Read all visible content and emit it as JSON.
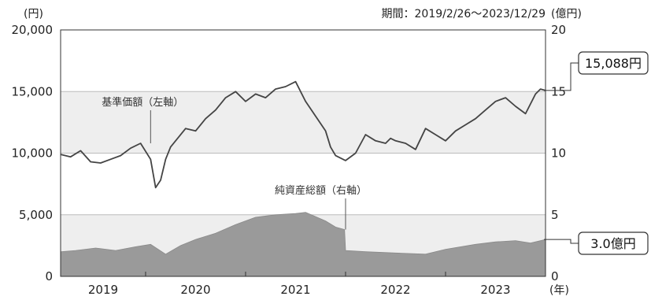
{
  "chart_data": {
    "type": "line",
    "period_label": "期間：2019/2/26〜2023/12/29",
    "left_axis": {
      "unit": "(円)",
      "ylim": [
        0,
        20000
      ],
      "ticks": [
        0,
        5000,
        10000,
        15000,
        20000
      ],
      "tick_labels": [
        "0",
        "5,000",
        "10,000",
        "15,000",
        "20,000"
      ]
    },
    "right_axis": {
      "unit": "(億円)",
      "ylim": [
        0,
        20
      ],
      "ticks": [
        0,
        5,
        10,
        15,
        20
      ],
      "tick_labels": [
        "0",
        "5",
        "10",
        "15",
        "20"
      ]
    },
    "x_axis": {
      "unit": "(年)",
      "range": [
        2019.15,
        2024.0
      ],
      "year_labels": [
        "2019",
        "2020",
        "2021",
        "2022",
        "2023"
      ],
      "year_boundaries": [
        2020,
        2021,
        2022,
        2023
      ]
    },
    "bands": [
      {
        "from": 0,
        "to": 5000
      },
      {
        "from": 10000,
        "to": 15000
      }
    ],
    "series": [
      {
        "name": "基準価額（左軸）",
        "axis": "left",
        "kind": "line",
        "color": "#444444",
        "x": [
          2019.15,
          2019.25,
          2019.35,
          2019.45,
          2019.55,
          2019.65,
          2019.75,
          2019.85,
          2019.95,
          2020.05,
          2020.1,
          2020.15,
          2020.2,
          2020.25,
          2020.3,
          2020.4,
          2020.5,
          2020.6,
          2020.7,
          2020.8,
          2020.9,
          2021.0,
          2021.1,
          2021.2,
          2021.3,
          2021.4,
          2021.5,
          2021.6,
          2021.7,
          2021.8,
          2021.85,
          2021.9,
          2022.0,
          2022.1,
          2022.2,
          2022.3,
          2022.4,
          2022.45,
          2022.5,
          2022.6,
          2022.7,
          2022.8,
          2022.9,
          2023.0,
          2023.1,
          2023.2,
          2023.3,
          2023.4,
          2023.5,
          2023.6,
          2023.7,
          2023.8,
          2023.9,
          2023.95,
          2024.0
        ],
        "y": [
          9900,
          9700,
          10200,
          9300,
          9200,
          9500,
          9800,
          10400,
          10800,
          9500,
          7200,
          7800,
          9500,
          10500,
          11000,
          12000,
          11800,
          12800,
          13500,
          14500,
          15000,
          14200,
          14800,
          14500,
          15200,
          15400,
          15800,
          14200,
          13000,
          11800,
          10500,
          9800,
          9400,
          10000,
          11500,
          11000,
          10800,
          11200,
          11000,
          10800,
          10300,
          12000,
          11500,
          11000,
          11800,
          12300,
          12800,
          13500,
          14200,
          14500,
          13800,
          13200,
          14800,
          15200,
          15088
        ]
      },
      {
        "name": "純資産総額（右軸）",
        "axis": "right",
        "kind": "area",
        "color": "#9a9a9a",
        "x": [
          2019.15,
          2019.3,
          2019.5,
          2019.7,
          2019.9,
          2020.05,
          2020.2,
          2020.35,
          2020.5,
          2020.7,
          2020.9,
          2021.1,
          2021.3,
          2021.5,
          2021.6,
          2021.8,
          2021.9,
          2021.99,
          2022.0,
          2022.2,
          2022.5,
          2022.8,
          2023.0,
          2023.3,
          2023.5,
          2023.7,
          2023.85,
          2024.0
        ],
        "y": [
          2.0,
          2.1,
          2.3,
          2.1,
          2.4,
          2.6,
          1.8,
          2.5,
          3.0,
          3.5,
          4.2,
          4.8,
          5.0,
          5.1,
          5.2,
          4.5,
          4.0,
          3.8,
          2.1,
          2.0,
          1.9,
          1.8,
          2.2,
          2.6,
          2.8,
          2.9,
          2.7,
          3.0
        ]
      }
    ],
    "annotations": [
      {
        "text": "基準価額（左軸）",
        "x": 2020.05,
        "axis": "left",
        "y": 10800
      },
      {
        "text": "純資産総額（右軸）",
        "x": 2022.0,
        "axis": "right",
        "y": 3.8
      }
    ],
    "callouts": [
      {
        "text": "15,088円",
        "axis": "left",
        "y": 15088
      },
      {
        "text": "3.0億円",
        "axis": "right",
        "y": 3.0
      }
    ]
  }
}
